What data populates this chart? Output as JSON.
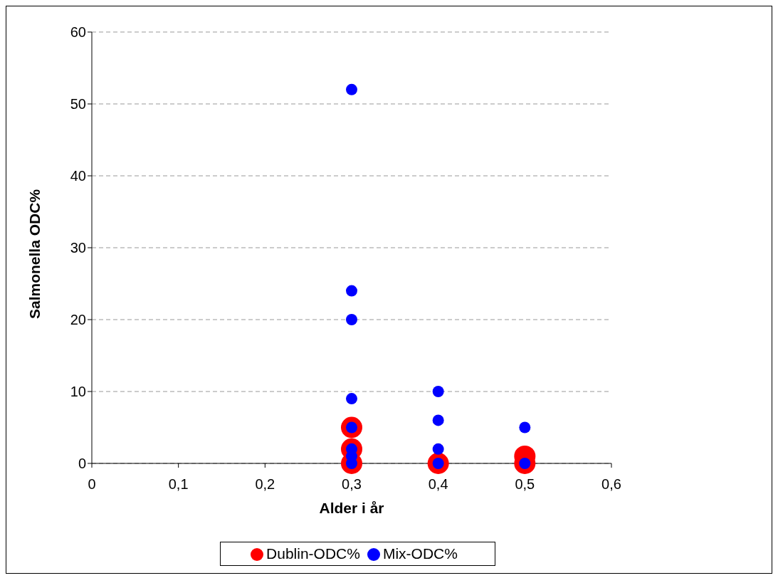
{
  "chart_data": {
    "type": "scatter",
    "xlabel": "Alder i år",
    "ylabel": "Salmonella ODC%",
    "xlim": [
      0,
      0.6
    ],
    "xticks": [
      0,
      {
        "value": 0.1,
        "label": "0,1"
      },
      {
        "value": 0.2,
        "label": "0,2"
      },
      {
        "value": 0.3,
        "label": "0,3"
      },
      {
        "value": 0.4,
        "label": "0,4"
      },
      {
        "value": 0.5,
        "label": "0,5"
      },
      {
        "value": 0.6,
        "label": "0,6"
      }
    ],
    "ylim": [
      0,
      60
    ],
    "yticks": [
      0,
      10,
      20,
      30,
      40,
      50,
      60
    ],
    "grid": "y",
    "legend": "bottom",
    "marker": "circle",
    "series": [
      {
        "name": "Dublin-ODC%",
        "color": "#ff0000",
        "x": [
          0.3,
          0.3,
          0.3,
          0.4,
          0.5,
          0.5
        ],
        "values": [
          5,
          2,
          0,
          0,
          1,
          0
        ]
      },
      {
        "name": "Mix-ODC%",
        "color": "#0000ff",
        "x": [
          0.3,
          0.3,
          0.3,
          0.3,
          0.3,
          0.3,
          0.3,
          0.3,
          0.4,
          0.4,
          0.4,
          0.4,
          0.5,
          0.5
        ],
        "values": [
          52,
          24,
          20,
          9,
          5,
          2,
          1,
          0,
          10,
          6,
          2,
          0,
          5,
          0
        ]
      }
    ]
  }
}
